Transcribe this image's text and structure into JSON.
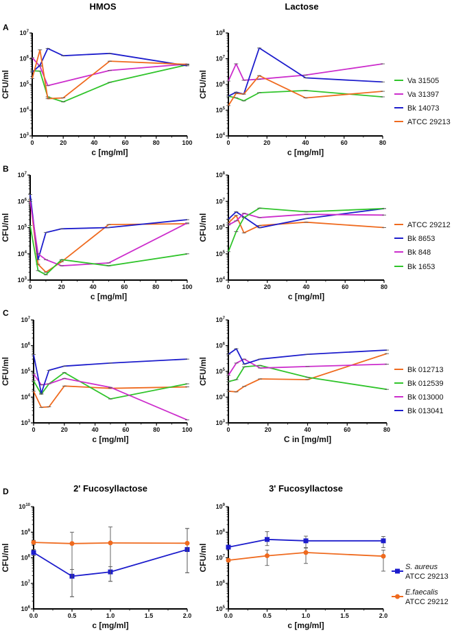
{
  "headers": {
    "left": "HMOS",
    "right": "Lactose"
  },
  "panel_letters": [
    "A",
    "B",
    "C",
    "D"
  ],
  "colors": {
    "green": "#2fc42a",
    "magenta": "#cc2ccc",
    "blue": "#1c1ccc",
    "orange": "#ef6a1e"
  },
  "legends": [
    {
      "row": "A",
      "items": [
        {
          "name": "Va 31505",
          "color": "#2fc42a"
        },
        {
          "name": "Va 31397",
          "color": "#cc2ccc"
        },
        {
          "name": "Bk 14073",
          "color": "#1c1ccc"
        },
        {
          "name": "ATCC 29213",
          "color": "#ef6a1e"
        }
      ]
    },
    {
      "row": "B",
      "items": [
        {
          "name": "ATCC 29212",
          "color": "#ef6a1e"
        },
        {
          "name": "Bk 8653",
          "color": "#1c1ccc"
        },
        {
          "name": "Bk 848",
          "color": "#cc2ccc"
        },
        {
          "name": "Bk 1653",
          "color": "#2fc42a"
        }
      ]
    },
    {
      "row": "C",
      "items": [
        {
          "name": "Bk 012713",
          "color": "#ef6a1e"
        },
        {
          "name": "Bk 012539",
          "color": "#2fc42a"
        },
        {
          "name": "Bk 013000",
          "color": "#cc2ccc"
        },
        {
          "name": "Bk 013041",
          "color": "#1c1ccc"
        }
      ]
    },
    {
      "row": "D",
      "items": [
        {
          "name": "S. aureus",
          "name2": "ATCC 29213",
          "color": "#1c1ccc",
          "marker": "square"
        },
        {
          "name": "E.faecalis",
          "name2": "ATCC 29212",
          "color": "#ef6a1e",
          "marker": "circle"
        }
      ]
    }
  ],
  "chart_data": [
    {
      "panel": "A-HMOS",
      "type": "line",
      "title": "",
      "xlabel": "c [mg/ml]",
      "ylabel": "CFU/ml",
      "yscale": "log",
      "ylim": [
        1000,
        10000000
      ],
      "xlim": [
        0,
        100
      ],
      "xticks": [
        0,
        20,
        40,
        60,
        80,
        100
      ],
      "yticks_exp": [
        3,
        4,
        5,
        6,
        7
      ],
      "series": [
        {
          "name": "Va 31505",
          "color": "#2fc42a",
          "x": [
            0,
            5,
            10,
            20,
            50,
            100
          ],
          "y": [
            340000,
            330000,
            33000,
            21000,
            120000,
            580000
          ]
        },
        {
          "name": "Va 31397",
          "color": "#cc2ccc",
          "x": [
            0,
            5,
            10,
            50,
            100
          ],
          "y": [
            1100000,
            500000,
            90000,
            350000,
            620000
          ]
        },
        {
          "name": "Bk 14073",
          "color": "#1c1ccc",
          "x": [
            0,
            5,
            10,
            20,
            50,
            100
          ],
          "y": [
            300000,
            550000,
            2500000,
            1300000,
            1600000,
            530000
          ]
        },
        {
          "name": "ATCC 29213",
          "color": "#ef6a1e",
          "x": [
            0,
            5,
            10,
            20,
            50,
            100
          ],
          "y": [
            170000,
            2200000,
            28000,
            30000,
            800000,
            600000
          ]
        }
      ]
    },
    {
      "panel": "A-Lactose",
      "type": "line",
      "title": "",
      "xlabel": "c [mg/ml]",
      "ylabel": "CFU/ml",
      "yscale": "log",
      "ylim": [
        10000,
        100000000
      ],
      "xlim": [
        0,
        80
      ],
      "xticks": [
        0,
        20,
        40,
        60,
        80
      ],
      "yticks_exp": [
        4,
        5,
        6,
        7,
        8
      ],
      "series": [
        {
          "name": "Va 31505",
          "color": "#2fc42a",
          "x": [
            0,
            4,
            8,
            16,
            40,
            80
          ],
          "y": [
            350000,
            300000,
            230000,
            480000,
            580000,
            330000
          ]
        },
        {
          "name": "Va 31397",
          "color": "#cc2ccc",
          "x": [
            0,
            4,
            8,
            16,
            40,
            80
          ],
          "y": [
            1350000,
            6300000,
            1450000,
            1600000,
            2300000,
            6300000
          ]
        },
        {
          "name": "Bk 14073",
          "color": "#1c1ccc",
          "x": [
            0,
            4,
            8,
            16,
            40,
            80
          ],
          "y": [
            350000,
            500000,
            420000,
            26000000,
            1800000,
            1250000
          ]
        },
        {
          "name": "ATCC 29213",
          "color": "#ef6a1e",
          "x": [
            0,
            4,
            8,
            16,
            40,
            80
          ],
          "y": [
            150000,
            450000,
            420000,
            2200000,
            300000,
            540000
          ]
        }
      ]
    },
    {
      "panel": "B-HMOS",
      "type": "line",
      "title": "",
      "xlabel": "c [mg/ml]",
      "ylabel": "CFU/ml",
      "yscale": "log",
      "ylim": [
        1000,
        10000000
      ],
      "xlim": [
        0,
        100
      ],
      "xticks": [
        0,
        20,
        40,
        60,
        80,
        100
      ],
      "yticks_exp": [
        3,
        4,
        5,
        6,
        7
      ],
      "series": [
        {
          "name": "ATCC 29212",
          "color": "#ef6a1e",
          "x": [
            0,
            5,
            10,
            20,
            50,
            100
          ],
          "y": [
            1200000,
            4000,
            2000,
            5000,
            130000,
            140000
          ]
        },
        {
          "name": "Bk 8653",
          "color": "#1c1ccc",
          "x": [
            0,
            5,
            10,
            20,
            50,
            100
          ],
          "y": [
            1800000,
            6000,
            65000,
            90000,
            100000,
            200000
          ]
        },
        {
          "name": "Bk 848",
          "color": "#cc2ccc",
          "x": [
            0,
            5,
            10,
            20,
            50,
            100
          ],
          "y": [
            1000000,
            10000,
            6000,
            3500,
            4500,
            150000
          ]
        },
        {
          "name": "Bk 1653",
          "color": "#2fc42a",
          "x": [
            0,
            5,
            10,
            20,
            50,
            100
          ],
          "y": [
            120000,
            2300,
            1600,
            6000,
            3500,
            10000
          ]
        }
      ]
    },
    {
      "panel": "B-Lactose",
      "type": "line",
      "title": "",
      "xlabel": "c [mg/ml]",
      "ylabel": "CFU/ml",
      "yscale": "log",
      "ylim": [
        10000,
        100000000
      ],
      "xlim": [
        0,
        80
      ],
      "xticks": [
        0,
        20,
        40,
        60,
        80
      ],
      "yticks_exp": [
        4,
        5,
        6,
        7,
        8
      ],
      "series": [
        {
          "name": "ATCC 29212",
          "color": "#ef6a1e",
          "x": [
            0,
            4,
            8,
            16,
            40,
            80
          ],
          "y": [
            1500000,
            2900000,
            630000,
            1200000,
            1600000,
            1000000
          ]
        },
        {
          "name": "Bk 8653",
          "color": "#1c1ccc",
          "x": [
            0,
            4,
            8,
            16,
            40,
            80
          ],
          "y": [
            2100000,
            4000000,
            2500000,
            980000,
            2200000,
            5300000
          ]
        },
        {
          "name": "Bk 848",
          "color": "#cc2ccc",
          "x": [
            0,
            4,
            8,
            16,
            40,
            80
          ],
          "y": [
            1250000,
            1800000,
            3500000,
            2400000,
            3200000,
            3000000
          ]
        },
        {
          "name": "Bk 1653",
          "color": "#2fc42a",
          "x": [
            0,
            4,
            8,
            16,
            40,
            80
          ],
          "y": [
            120000,
            700000,
            2400000,
            5500000,
            4000000,
            5300000
          ]
        }
      ]
    },
    {
      "panel": "C-HMOS",
      "type": "line",
      "title": "",
      "xlabel": "c [mg/ml]",
      "ylabel": "CFU/ml",
      "yscale": "log",
      "ylim": [
        1000,
        10000000
      ],
      "xlim": [
        0,
        100
      ],
      "xticks": [
        0,
        20,
        40,
        60,
        80,
        100
      ],
      "yticks_exp": [
        3,
        4,
        5,
        6,
        7
      ],
      "series": [
        {
          "name": "Bk 012713",
          "color": "#ef6a1e",
          "x": [
            0,
            5,
            10,
            20,
            50,
            100
          ],
          "y": [
            17000,
            4000,
            4200,
            27000,
            22000,
            25000
          ]
        },
        {
          "name": "Bk 012539",
          "color": "#2fc42a",
          "x": [
            0,
            5,
            10,
            20,
            50,
            100
          ],
          "y": [
            43000,
            13000,
            33000,
            90000,
            8500,
            33000
          ]
        },
        {
          "name": "Bk 013000",
          "color": "#cc2ccc",
          "x": [
            0,
            5,
            10,
            20,
            50,
            100
          ],
          "y": [
            80000,
            30000,
            33000,
            53000,
            24000,
            1300
          ]
        },
        {
          "name": "Bk 013041",
          "color": "#1c1ccc",
          "x": [
            0,
            5,
            10,
            20,
            50,
            100
          ],
          "y": [
            450000,
            14000,
            110000,
            160000,
            210000,
            300000
          ]
        }
      ]
    },
    {
      "panel": "C-Lactose",
      "type": "line",
      "title": "",
      "xlabel": "C in [mg/ml]",
      "ylabel": "CFU/ml",
      "yscale": "log",
      "ylim": [
        1000,
        10000000
      ],
      "xlim": [
        0,
        80
      ],
      "xticks": [
        0,
        20,
        40,
        60,
        80
      ],
      "yticks_exp": [
        3,
        4,
        5,
        6,
        7
      ],
      "series": [
        {
          "name": "Bk 012713",
          "color": "#ef6a1e",
          "x": [
            0,
            4,
            8,
            16,
            40,
            80
          ],
          "y": [
            17000,
            16000,
            26000,
            51000,
            48000,
            490000
          ]
        },
        {
          "name": "Bk 012539",
          "color": "#2fc42a",
          "x": [
            0,
            4,
            8,
            16,
            40,
            80
          ],
          "y": [
            40000,
            48000,
            150000,
            170000,
            59000,
            20000
          ]
        },
        {
          "name": "Bk 013000",
          "color": "#cc2ccc",
          "x": [
            0,
            4,
            8,
            16,
            40,
            80
          ],
          "y": [
            70000,
            210000,
            300000,
            135000,
            155000,
            190000
          ]
        },
        {
          "name": "Bk 013041",
          "color": "#1c1ccc",
          "x": [
            0,
            4,
            8,
            16,
            40,
            80
          ],
          "y": [
            460000,
            760000,
            190000,
            300000,
            460000,
            670000
          ]
        }
      ]
    },
    {
      "panel": "D-2FL",
      "type": "line",
      "title": "2' Fucosyllactose",
      "xlabel": "c [mg/ml]",
      "ylabel": "CFU/ml",
      "yscale": "log",
      "ylim": [
        1000000,
        10000000000
      ],
      "xlim": [
        0,
        2
      ],
      "xticks": [
        0.0,
        0.5,
        1.0,
        1.5,
        2.0
      ],
      "yticks_exp": [
        6,
        7,
        8,
        9,
        10
      ],
      "series": [
        {
          "name": "S. aureus ATCC 29213",
          "color": "#1c1ccc",
          "marker": "square",
          "x": [
            0,
            0.5,
            1.0,
            2.0
          ],
          "y": [
            160000000,
            19000000,
            28000000,
            210000000
          ],
          "err_low": [
            120000000,
            3000000,
            12000000,
            26000000
          ],
          "err_high": [
            210000000,
            35000000,
            45000000,
            1400000000
          ]
        },
        {
          "name": "E.faecalis ATCC 29212",
          "color": "#ef6a1e",
          "marker": "circle",
          "x": [
            0,
            0.5,
            1.0,
            2.0
          ],
          "y": [
            400000000,
            360000000,
            380000000,
            370000000
          ],
          "err_low": [
            330000000,
            3000000,
            12000000,
            26000000
          ],
          "err_high": [
            480000000,
            1000000000,
            1600000000,
            1400000000
          ]
        }
      ]
    },
    {
      "panel": "D-3FL",
      "type": "line",
      "title": "3' Fucosyllactose",
      "xlabel": "c [mg/ml]",
      "ylabel": "CFU/ml",
      "yscale": "log",
      "ylim": [
        100000,
        1000000000
      ],
      "xlim": [
        0,
        2
      ],
      "xticks": [
        0.0,
        0.5,
        1.0,
        1.5,
        2.0
      ],
      "yticks_exp": [
        5,
        6,
        7,
        8,
        9
      ],
      "series": [
        {
          "name": "S. aureus ATCC 29213",
          "color": "#1c1ccc",
          "marker": "square",
          "x": [
            0,
            0.5,
            1.0,
            2.0
          ],
          "y": [
            26000000,
            52000000,
            46000000,
            46000000
          ],
          "err_low": [
            22000000,
            30000000,
            25000000,
            25000000
          ],
          "err_high": [
            30000000,
            105000000,
            70000000,
            68000000
          ]
        },
        {
          "name": "E.faecalis ATCC 29212",
          "color": "#ef6a1e",
          "marker": "circle",
          "x": [
            0,
            0.5,
            1.0,
            2.0
          ],
          "y": [
            8000000,
            12000000,
            16000000,
            11500000
          ],
          "err_low": [
            7000000,
            5000000,
            6000000,
            3000000
          ],
          "err_high": [
            9000000,
            20000000,
            24000000,
            20000000
          ]
        }
      ]
    }
  ]
}
